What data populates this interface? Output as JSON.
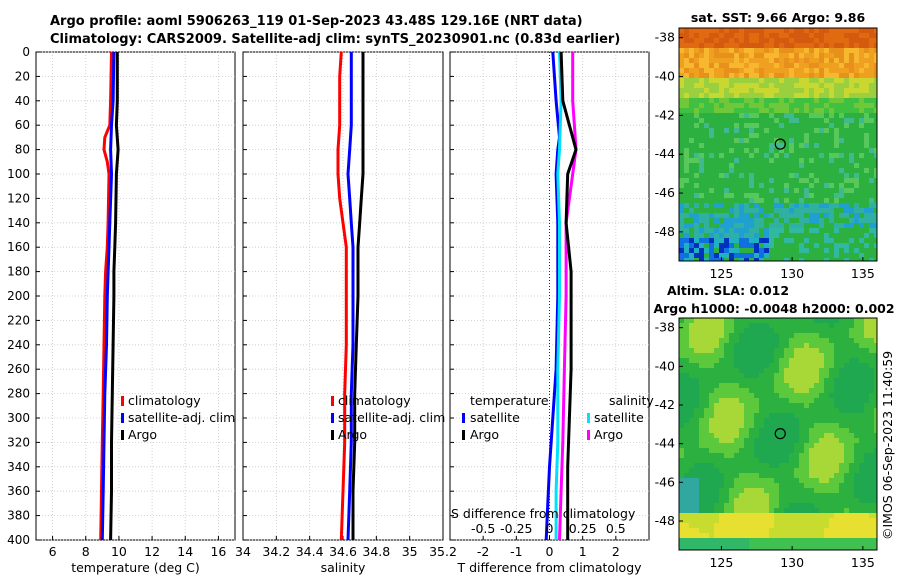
{
  "header": {
    "title_line1": "Argo profile: aoml 5906263_119 01-Sep-2023 43.48S 129.16E (NRT data)",
    "title_line2": "Climatology: CARS2009. Satellite-adj clim: synTS_20230901.nc (0.83d earlier)"
  },
  "depth_axis": {
    "ylim": [
      0,
      400
    ],
    "ticks": [
      0,
      20,
      40,
      60,
      80,
      100,
      120,
      140,
      160,
      180,
      200,
      220,
      240,
      260,
      280,
      300,
      320,
      340,
      360,
      380,
      400
    ]
  },
  "chart_data": [
    {
      "type": "line",
      "id": "temperature",
      "xlabel": "temperature (deg C)",
      "xlim": [
        5,
        17
      ],
      "xticks": [
        6,
        8,
        10,
        12,
        14,
        16
      ],
      "xtick_labels": [
        "6",
        "8",
        "10",
        "12",
        "14",
        "16"
      ],
      "legend": [
        "climatology",
        "satellite-adj. clim",
        "Argo"
      ],
      "series": [
        {
          "name": "climatology",
          "color": "#ff0000",
          "depth": [
            0,
            40,
            60,
            70,
            80,
            90,
            100,
            140,
            160,
            180,
            200,
            240,
            280,
            320,
            360,
            400
          ],
          "values": [
            9.55,
            9.5,
            9.45,
            9.15,
            9.1,
            9.3,
            9.4,
            9.35,
            9.3,
            9.2,
            9.15,
            9.1,
            9.05,
            9.0,
            8.95,
            8.9
          ]
        },
        {
          "name": "satellite-adj. clim",
          "color": "#0000ff",
          "depth": [
            0,
            40,
            60,
            80,
            100,
            140,
            160,
            200,
            240,
            280,
            320,
            360,
            400
          ],
          "values": [
            9.7,
            9.65,
            9.55,
            9.5,
            9.55,
            9.45,
            9.4,
            9.3,
            9.25,
            9.15,
            9.1,
            9.05,
            9.0
          ]
        },
        {
          "name": "Argo",
          "color": "#000000",
          "depth": [
            0,
            40,
            60,
            80,
            100,
            140,
            160,
            180,
            200,
            240,
            280,
            320,
            360,
            400
          ],
          "values": [
            9.9,
            9.9,
            9.85,
            9.95,
            9.85,
            9.8,
            9.75,
            9.7,
            9.7,
            9.65,
            9.6,
            9.55,
            9.55,
            9.5
          ]
        }
      ]
    },
    {
      "type": "line",
      "id": "salinity",
      "xlabel": "salinity",
      "xlim": [
        34.0,
        35.2
      ],
      "xticks": [
        34.0,
        34.2,
        34.4,
        34.6,
        34.8,
        35.0,
        35.2
      ],
      "xtick_labels": [
        "34",
        "34.2",
        "34.4",
        "34.6",
        "34.8",
        "35",
        "35.2"
      ],
      "legend": [
        "climatology",
        "satellite-adj. clim",
        "Argo"
      ],
      "series": [
        {
          "name": "climatology",
          "color": "#ff0000",
          "depth": [
            0,
            20,
            40,
            60,
            80,
            100,
            120,
            140,
            160,
            200,
            240,
            280,
            320,
            360,
            400
          ],
          "values": [
            34.59,
            34.58,
            34.58,
            34.58,
            34.57,
            34.57,
            34.58,
            34.6,
            34.62,
            34.62,
            34.62,
            34.61,
            34.61,
            34.6,
            34.59
          ]
        },
        {
          "name": "satellite-adj. clim",
          "color": "#0000ff",
          "depth": [
            0,
            20,
            40,
            60,
            80,
            100,
            120,
            140,
            160,
            200,
            240,
            280,
            320,
            360,
            400
          ],
          "values": [
            34.65,
            34.65,
            34.65,
            34.65,
            34.64,
            34.63,
            34.64,
            34.65,
            34.66,
            34.66,
            34.66,
            34.65,
            34.65,
            34.64,
            34.63
          ]
        },
        {
          "name": "Argo",
          "color": "#000000",
          "depth": [
            0,
            20,
            40,
            60,
            80,
            100,
            120,
            140,
            160,
            200,
            240,
            280,
            320,
            360,
            400
          ],
          "values": [
            34.72,
            34.72,
            34.72,
            34.72,
            34.72,
            34.72,
            34.71,
            34.7,
            34.69,
            34.69,
            34.68,
            34.67,
            34.67,
            34.66,
            34.66
          ]
        }
      ]
    },
    {
      "type": "line",
      "id": "difference",
      "xlabel": "T difference from climatology",
      "xlabel_top": "S difference from climatology",
      "xlim": [
        -3,
        3
      ],
      "xticks": [
        -2,
        -1,
        0,
        1,
        2
      ],
      "xtick_labels": [
        "-2",
        "-1",
        "0",
        "1",
        "2"
      ],
      "s_ticks": [
        "-0.5",
        "-0.25",
        "0",
        "0.25",
        "0.5"
      ],
      "s_tick_positions": [
        -2,
        -1,
        0,
        1,
        2
      ],
      "legend_left_title": "temperature",
      "legend_right_title": "salinity",
      "legend_left": [
        "satellite",
        "Argo"
      ],
      "legend_right": [
        "satellite",
        "Argo"
      ],
      "series": [
        {
          "name": "T satellite",
          "color": "#0000ff",
          "depth": [
            0,
            40,
            70,
            80,
            100,
            140,
            200,
            260,
            300,
            340,
            370,
            400
          ],
          "values": [
            0.1,
            0.2,
            0.3,
            0.25,
            0.2,
            0.25,
            0.25,
            0.2,
            0.1,
            0.0,
            -0.05,
            -0.1
          ]
        },
        {
          "name": "S satellite",
          "color": "#00e0ff",
          "depth": [
            0,
            40,
            80,
            100,
            140,
            200,
            260,
            320,
            360,
            400
          ],
          "values": [
            0.3,
            0.35,
            0.3,
            0.25,
            0.3,
            0.3,
            0.25,
            0.25,
            0.2,
            0.2
          ]
        },
        {
          "name": "S Argo",
          "color": "#ff00ff",
          "depth": [
            0,
            40,
            60,
            80,
            100,
            140,
            200,
            260,
            320,
            360,
            400
          ],
          "values": [
            0.7,
            0.7,
            0.75,
            0.8,
            0.7,
            0.5,
            0.5,
            0.45,
            0.4,
            0.35,
            0.3
          ]
        },
        {
          "name": "T Argo",
          "color": "#000000",
          "depth": [
            0,
            40,
            60,
            80,
            100,
            140,
            180,
            220,
            260,
            300,
            340,
            380,
            400
          ],
          "values": [
            0.35,
            0.4,
            0.6,
            0.8,
            0.55,
            0.5,
            0.65,
            0.65,
            0.65,
            0.6,
            0.55,
            0.55,
            0.55
          ]
        }
      ]
    },
    {
      "type": "heatmap",
      "id": "sst_map",
      "title": "sat. SST: 9.66 Argo: 9.86",
      "xlim": [
        122,
        136
      ],
      "ylim": [
        -49.5,
        -37.5
      ],
      "xticks": [
        125,
        130,
        135
      ],
      "yticks": [
        -38,
        -40,
        -42,
        -44,
        -46,
        -48
      ],
      "marker": {
        "lon": 129.16,
        "lat": -43.48
      }
    },
    {
      "type": "heatmap",
      "id": "sla_map",
      "title": "Altim. SLA: 0.012",
      "subtitle": "Argo h1000: -0.0048 h2000: 0.002",
      "xlim": [
        122,
        136
      ],
      "ylim": [
        -49.5,
        -37.5
      ],
      "xticks": [
        125,
        130,
        135
      ],
      "yticks": [
        -38,
        -40,
        -42,
        -44,
        -46,
        -48
      ],
      "marker": {
        "lon": 129.16,
        "lat": -43.48
      }
    }
  ],
  "footer": {
    "stamp": "©IMOS 06-Sep-2023 11:40:59"
  }
}
